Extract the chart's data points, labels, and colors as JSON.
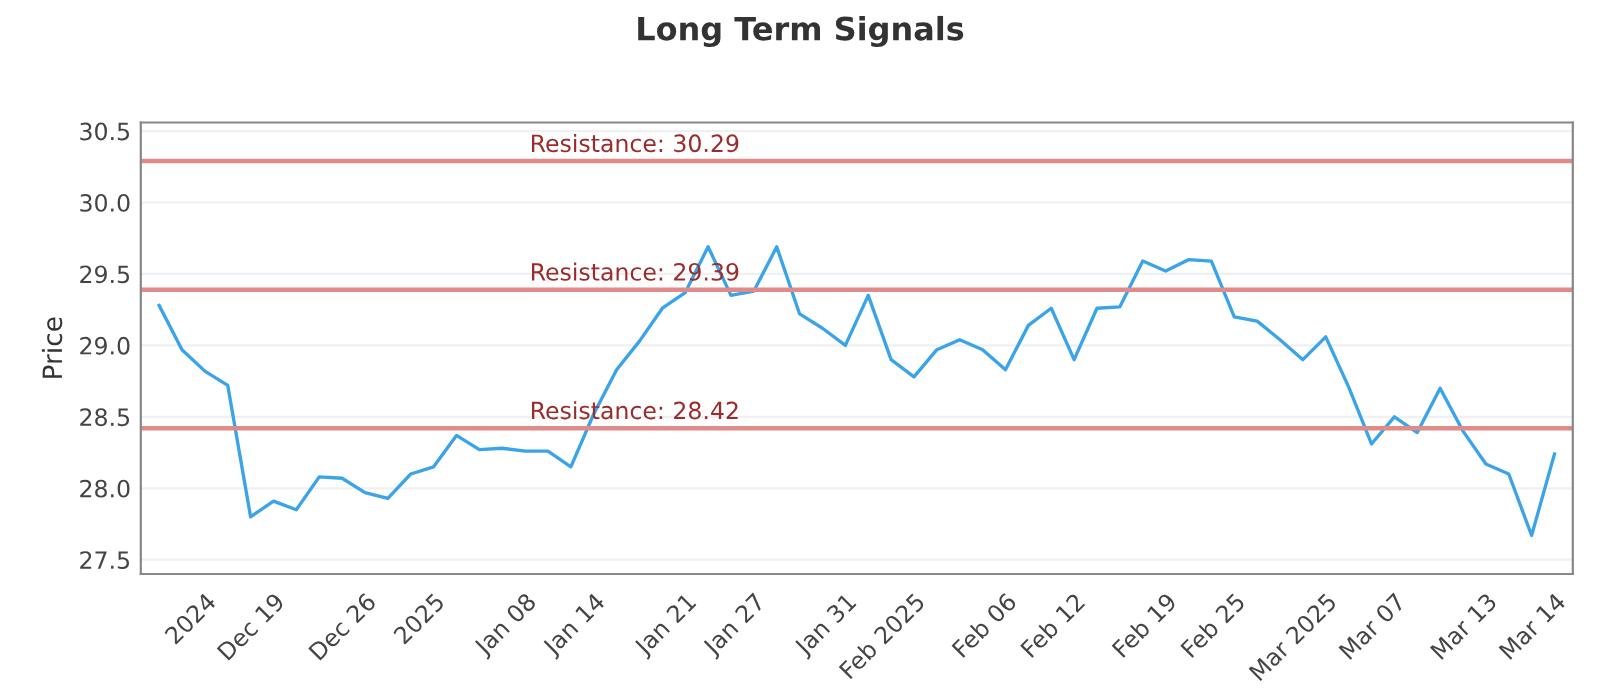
{
  "chart_data": {
    "type": "line",
    "title": "Long Term Signals",
    "ylabel": "Price",
    "categories": [
      null,
      null,
      "2024",
      null,
      null,
      "Dec 19",
      null,
      null,
      null,
      "Dec 26",
      null,
      null,
      "2025",
      null,
      null,
      null,
      "Jan 08",
      null,
      null,
      "Jan 14",
      null,
      null,
      null,
      "Jan 21",
      null,
      null,
      "Jan 27",
      null,
      null,
      null,
      "Jan 31",
      null,
      null,
      "Feb 2025",
      null,
      null,
      null,
      "Feb 06",
      null,
      null,
      "Feb 12",
      null,
      null,
      null,
      "Feb 19",
      null,
      null,
      "Feb 25",
      null,
      null,
      null,
      "Mar 2025",
      null,
      null,
      "Mar 07",
      null,
      null,
      null,
      "Mar 13",
      null,
      null,
      "Mar 14"
    ],
    "series": [
      {
        "color": "#3ba3e8",
        "values": [
          29.28,
          28.97,
          28.82,
          28.72,
          27.8,
          27.91,
          27.85,
          28.08,
          28.07,
          27.97,
          27.93,
          28.1,
          28.15,
          28.37,
          28.27,
          28.28,
          28.26,
          28.26,
          28.15,
          28.52,
          28.83,
          29.03,
          29.26,
          29.37,
          29.69,
          29.35,
          29.38,
          29.69,
          29.22,
          29.12,
          29.0,
          29.35,
          28.9,
          28.78,
          28.97,
          29.04,
          28.97,
          28.83,
          29.14,
          29.26,
          28.9,
          29.26,
          29.27,
          29.59,
          29.52,
          29.6,
          29.59,
          29.2,
          29.17,
          29.04,
          28.9,
          29.06,
          28.71,
          28.31,
          28.5,
          28.39,
          28.7,
          28.4,
          28.17,
          28.1,
          27.67,
          28.24
        ]
      }
    ],
    "ylim": [
      27.4,
      30.56
    ],
    "yticks": [
      {
        "value": 27.5,
        "label": "27.5"
      },
      {
        "value": 28,
        "label": "28.0"
      },
      {
        "value": 28.5,
        "label": "28.5"
      },
      {
        "value": 29,
        "label": "29.0"
      },
      {
        "value": 29.5,
        "label": "29.5"
      },
      {
        "value": 30,
        "label": "30.0"
      },
      {
        "value": 30.5,
        "label": "30.5"
      }
    ],
    "ref_lines": [
      {
        "axis": "y",
        "value": 30.29,
        "label": "Resistance: 30.29",
        "color": "#e08a8a"
      },
      {
        "axis": "y",
        "value": 29.39,
        "label": "Resistance: 29.39",
        "color": "#e08a8a"
      },
      {
        "axis": "y",
        "value": 28.42,
        "label": "Resistance: 28.42",
        "color": "#e08a8a"
      }
    ],
    "grid": "y",
    "legend": false
  }
}
